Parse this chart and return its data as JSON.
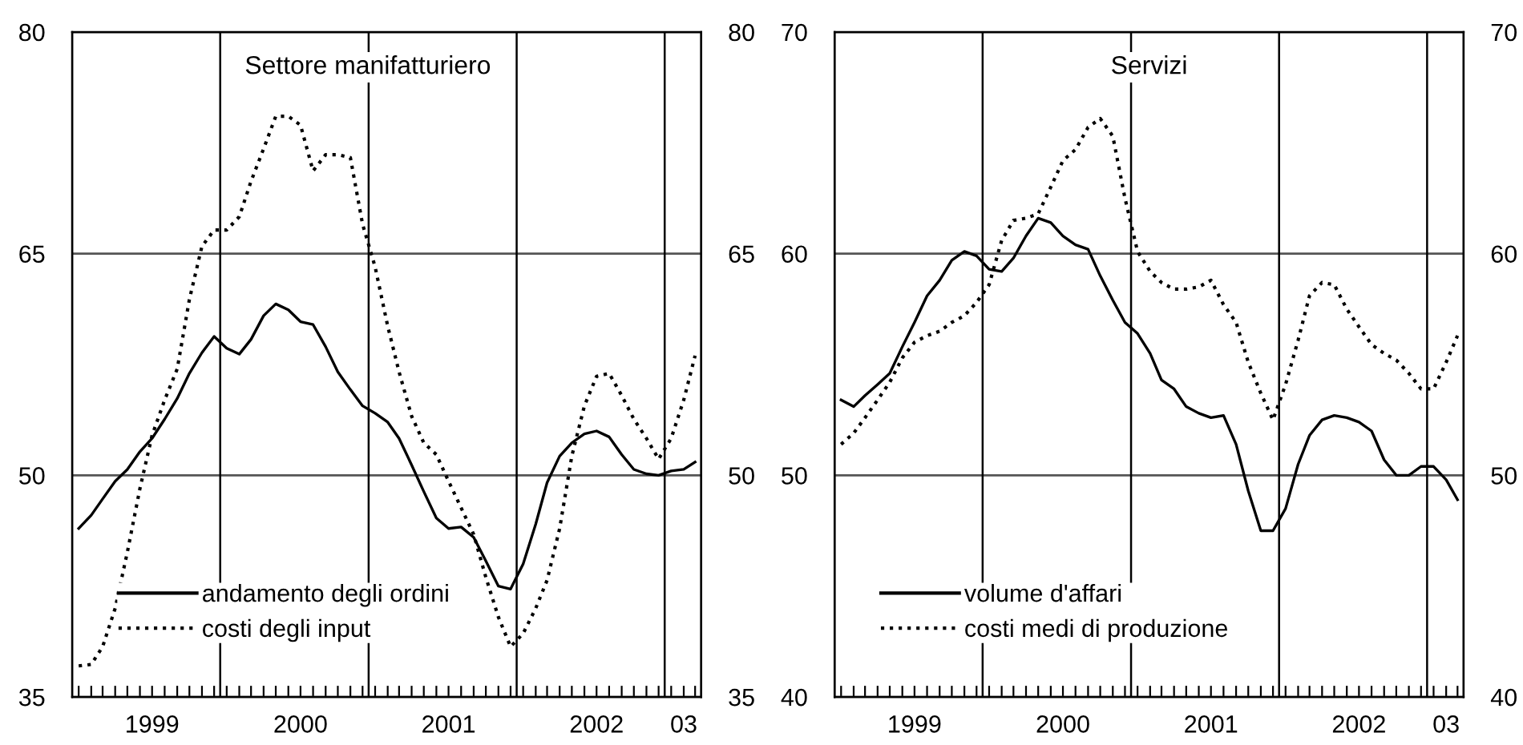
{
  "chart_data": [
    {
      "type": "line",
      "title": "Settore manifatturiero",
      "legend": "bottom left",
      "grid": "y",
      "x": [
        "1999-01",
        "1999-02",
        "1999-03",
        "1999-04",
        "1999-05",
        "1999-06",
        "1999-07",
        "1999-08",
        "1999-09",
        "1999-10",
        "1999-11",
        "1999-12",
        "2000-01",
        "2000-02",
        "2000-03",
        "2000-04",
        "2000-05",
        "2000-06",
        "2000-07",
        "2000-08",
        "2000-09",
        "2000-10",
        "2000-11",
        "2000-12",
        "2001-01",
        "2001-02",
        "2001-03",
        "2001-04",
        "2001-05",
        "2001-06",
        "2001-07",
        "2001-08",
        "2001-09",
        "2001-10",
        "2001-11",
        "2001-12",
        "2002-01",
        "2002-02",
        "2002-03",
        "2002-04",
        "2002-05",
        "2002-06",
        "2002-07",
        "2002-08",
        "2002-09",
        "2002-10",
        "2002-11",
        "2002-12",
        "2003-01",
        "2003-02",
        "2003-03"
      ],
      "series": [
        {
          "name": "andamento degli ordini",
          "color": "#000000",
          "line_style": "solid",
          "values": [
            46.4,
            47.3,
            48.4,
            49.6,
            50.4,
            51.6,
            52.5,
            53.8,
            55.2,
            56.9,
            58.3,
            59.4,
            58.6,
            58.2,
            59.2,
            60.8,
            61.6,
            61.2,
            60.4,
            60.2,
            58.7,
            57.0,
            55.8,
            54.7,
            54.2,
            53.6,
            52.5,
            50.7,
            48.9,
            47.1,
            46.4,
            46.5,
            45.8,
            44.2,
            42.5,
            42.3,
            44.0,
            46.7,
            49.5,
            51.3,
            52.2,
            52.8,
            53.0,
            52.6,
            51.4,
            50.4,
            50.1,
            50.0,
            50.3,
            50.4,
            50.9
          ]
        },
        {
          "name": "costi degli input",
          "color": "#000000",
          "line_style": "dotted",
          "values": [
            37.1,
            37.2,
            38.4,
            41.0,
            44.8,
            49.1,
            52.7,
            55.1,
            57.2,
            61.9,
            65.5,
            66.6,
            66.6,
            67.5,
            69.9,
            72.1,
            74.3,
            74.3,
            73.7,
            70.6,
            71.7,
            71.7,
            71.5,
            67.0,
            64.1,
            60.1,
            57.0,
            54.0,
            52.2,
            51.4,
            49.6,
            47.8,
            46.0,
            43.1,
            40.4,
            38.4,
            39.3,
            41.0,
            42.9,
            46.4,
            51.3,
            54.7,
            56.7,
            56.9,
            55.4,
            53.8,
            52.5,
            51.1,
            52.5,
            55.1,
            58.1
          ]
        }
      ],
      "xlim": [
        "1998-12-16",
        "2003-03-16"
      ],
      "xticks": [
        {
          "value": "1999-01",
          "label": null
        },
        {
          "value": "1999-02",
          "label": null
        },
        {
          "value": "1999-03",
          "label": null
        },
        {
          "value": "1999-04",
          "label": null
        },
        {
          "value": "1999-05",
          "label": null
        },
        {
          "value": "1999-06",
          "label": null
        },
        {
          "value": "1999-07",
          "label": "1999"
        },
        {
          "value": "1999-08",
          "label": null
        },
        {
          "value": "1999-09",
          "label": null
        },
        {
          "value": "1999-10",
          "label": null
        },
        {
          "value": "1999-11",
          "label": null
        },
        {
          "value": "1999-12",
          "label": null
        },
        {
          "value": "2000-01",
          "label": null
        },
        {
          "value": "2000-02",
          "label": null
        },
        {
          "value": "2000-03",
          "label": null
        },
        {
          "value": "2000-04",
          "label": null
        },
        {
          "value": "2000-05",
          "label": null
        },
        {
          "value": "2000-06",
          "label": null
        },
        {
          "value": "2000-07",
          "label": "2000"
        },
        {
          "value": "2000-08",
          "label": null
        },
        {
          "value": "2000-09",
          "label": null
        },
        {
          "value": "2000-10",
          "label": null
        },
        {
          "value": "2000-11",
          "label": null
        },
        {
          "value": "2000-12",
          "label": null
        },
        {
          "value": "2001-01",
          "label": null
        },
        {
          "value": "2001-02",
          "label": null
        },
        {
          "value": "2001-03",
          "label": null
        },
        {
          "value": "2001-04",
          "label": null
        },
        {
          "value": "2001-05",
          "label": null
        },
        {
          "value": "2001-06",
          "label": null
        },
        {
          "value": "2001-07",
          "label": "2001"
        },
        {
          "value": "2001-08",
          "label": null
        },
        {
          "value": "2001-09",
          "label": null
        },
        {
          "value": "2001-10",
          "label": null
        },
        {
          "value": "2001-11",
          "label": null
        },
        {
          "value": "2001-12",
          "label": null
        },
        {
          "value": "2002-01",
          "label": null
        },
        {
          "value": "2002-02",
          "label": null
        },
        {
          "value": "2002-03",
          "label": null
        },
        {
          "value": "2002-04",
          "label": null
        },
        {
          "value": "2002-05",
          "label": null
        },
        {
          "value": "2002-06",
          "label": null
        },
        {
          "value": "2002-07",
          "label": "2002"
        },
        {
          "value": "2002-08",
          "label": null
        },
        {
          "value": "2002-09",
          "label": null
        },
        {
          "value": "2002-10",
          "label": null
        },
        {
          "value": "2002-11",
          "label": null
        },
        {
          "value": "2002-12",
          "label": null
        },
        {
          "value": "2003-01",
          "label": null
        },
        {
          "value": "2003-02",
          "label": "03"
        },
        {
          "value": "2003-03",
          "label": null
        }
      ],
      "ylim": [
        35,
        80
      ],
      "yticks": [
        35,
        50,
        65,
        80
      ],
      "y2lim": [
        35,
        80
      ],
      "y2ticks": [
        35,
        50,
        65,
        80
      ],
      "ref_lines": [
        {
          "axis": "x",
          "value": "1999-12-16",
          "color": "#000000"
        },
        {
          "axis": "x",
          "value": "2000-12-16",
          "color": "#000000"
        },
        {
          "axis": "x",
          "value": "2001-12-16",
          "color": "#000000"
        },
        {
          "axis": "x",
          "value": "2002-12-16",
          "color": "#000000"
        }
      ]
    },
    {
      "type": "line",
      "title": "Servizi",
      "legend": "bottom left",
      "grid": "y",
      "x": [
        "1999-01",
        "1999-02",
        "1999-03",
        "1999-04",
        "1999-05",
        "1999-06",
        "1999-07",
        "1999-08",
        "1999-09",
        "1999-10",
        "1999-11",
        "1999-12",
        "2000-01",
        "2000-02",
        "2000-03",
        "2000-04",
        "2000-05",
        "2000-06",
        "2000-07",
        "2000-08",
        "2000-09",
        "2000-10",
        "2000-11",
        "2000-12",
        "2001-01",
        "2001-02",
        "2001-03",
        "2001-04",
        "2001-05",
        "2001-06",
        "2001-07",
        "2001-08",
        "2001-09",
        "2001-10",
        "2001-11",
        "2001-12",
        "2002-01",
        "2002-02",
        "2002-03",
        "2002-04",
        "2002-05",
        "2002-06",
        "2002-07",
        "2002-08",
        "2002-09",
        "2002-10",
        "2002-11",
        "2002-12",
        "2003-01",
        "2003-02",
        "2003-03"
      ],
      "series": [
        {
          "name": "volume d'affari",
          "color": "#000000",
          "line_style": "solid",
          "values": [
            53.4,
            53.1,
            53.6,
            54.1,
            54.6,
            55.8,
            56.9,
            58.1,
            58.8,
            59.7,
            60.1,
            59.9,
            59.3,
            59.2,
            59.8,
            60.8,
            61.6,
            61.4,
            60.8,
            60.4,
            60.2,
            59.0,
            57.9,
            56.9,
            56.4,
            55.5,
            54.3,
            53.9,
            53.1,
            52.8,
            52.6,
            52.7,
            51.4,
            49.3,
            47.5,
            47.5,
            48.5,
            50.5,
            51.8,
            52.5,
            52.7,
            52.6,
            52.4,
            52.0,
            50.7,
            50.0,
            50.0,
            50.4,
            50.4,
            49.8,
            48.9
          ]
        },
        {
          "name": "costi medi di produzione",
          "color": "#000000",
          "line_style": "dotted",
          "values": [
            51.4,
            51.9,
            52.6,
            53.4,
            54.2,
            55.3,
            56.0,
            56.3,
            56.5,
            56.9,
            57.2,
            57.8,
            58.6,
            60.6,
            61.5,
            61.6,
            61.8,
            63.0,
            64.2,
            64.7,
            65.7,
            66.1,
            65.3,
            62.5,
            60.1,
            59.2,
            58.7,
            58.4,
            58.4,
            58.5,
            58.8,
            57.7,
            56.9,
            55.1,
            53.7,
            52.5,
            54.1,
            56.1,
            58.1,
            58.7,
            58.6,
            57.5,
            56.7,
            55.9,
            55.5,
            55.2,
            54.6,
            53.9,
            53.9,
            55.1,
            56.3
          ]
        }
      ],
      "xlim": [
        "1998-12-16",
        "2003-03-16"
      ],
      "xticks": [
        {
          "value": "1999-01",
          "label": null
        },
        {
          "value": "1999-02",
          "label": null
        },
        {
          "value": "1999-03",
          "label": null
        },
        {
          "value": "1999-04",
          "label": null
        },
        {
          "value": "1999-05",
          "label": null
        },
        {
          "value": "1999-06",
          "label": null
        },
        {
          "value": "1999-07",
          "label": "1999"
        },
        {
          "value": "1999-08",
          "label": null
        },
        {
          "value": "1999-09",
          "label": null
        },
        {
          "value": "1999-10",
          "label": null
        },
        {
          "value": "1999-11",
          "label": null
        },
        {
          "value": "1999-12",
          "label": null
        },
        {
          "value": "2000-01",
          "label": null
        },
        {
          "value": "2000-02",
          "label": null
        },
        {
          "value": "2000-03",
          "label": null
        },
        {
          "value": "2000-04",
          "label": null
        },
        {
          "value": "2000-05",
          "label": null
        },
        {
          "value": "2000-06",
          "label": null
        },
        {
          "value": "2000-07",
          "label": "2000"
        },
        {
          "value": "2000-08",
          "label": null
        },
        {
          "value": "2000-09",
          "label": null
        },
        {
          "value": "2000-10",
          "label": null
        },
        {
          "value": "2000-11",
          "label": null
        },
        {
          "value": "2000-12",
          "label": null
        },
        {
          "value": "2001-01",
          "label": null
        },
        {
          "value": "2001-02",
          "label": null
        },
        {
          "value": "2001-03",
          "label": null
        },
        {
          "value": "2001-04",
          "label": null
        },
        {
          "value": "2001-05",
          "label": null
        },
        {
          "value": "2001-06",
          "label": null
        },
        {
          "value": "2001-07",
          "label": "2001"
        },
        {
          "value": "2001-08",
          "label": null
        },
        {
          "value": "2001-09",
          "label": null
        },
        {
          "value": "2001-10",
          "label": null
        },
        {
          "value": "2001-11",
          "label": null
        },
        {
          "value": "2001-12",
          "label": null
        },
        {
          "value": "2002-01",
          "label": null
        },
        {
          "value": "2002-02",
          "label": null
        },
        {
          "value": "2002-03",
          "label": null
        },
        {
          "value": "2002-04",
          "label": null
        },
        {
          "value": "2002-05",
          "label": null
        },
        {
          "value": "2002-06",
          "label": null
        },
        {
          "value": "2002-07",
          "label": "2002"
        },
        {
          "value": "2002-08",
          "label": null
        },
        {
          "value": "2002-09",
          "label": null
        },
        {
          "value": "2002-10",
          "label": null
        },
        {
          "value": "2002-11",
          "label": null
        },
        {
          "value": "2002-12",
          "label": null
        },
        {
          "value": "2003-01",
          "label": null
        },
        {
          "value": "2003-02",
          "label": "03"
        },
        {
          "value": "2003-03",
          "label": null
        }
      ],
      "ylim": [
        40,
        70
      ],
      "yticks": [
        40,
        50,
        60,
        70
      ],
      "y2lim": [
        40,
        70
      ],
      "y2ticks": [
        40,
        50,
        60,
        70
      ],
      "ref_lines": [
        {
          "axis": "x",
          "value": "1999-12-16",
          "color": "#000000"
        },
        {
          "axis": "x",
          "value": "2000-12-16",
          "color": "#000000"
        },
        {
          "axis": "x",
          "value": "2001-12-16",
          "color": "#000000"
        },
        {
          "axis": "x",
          "value": "2002-12-16",
          "color": "#000000"
        }
      ]
    }
  ]
}
